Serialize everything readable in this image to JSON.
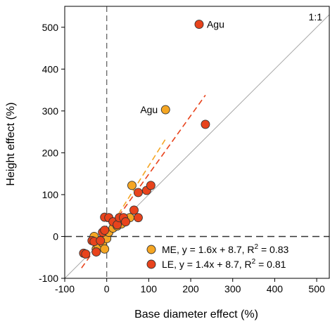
{
  "chart_data": {
    "type": "scatter",
    "title": "",
    "xlabel": "Base diameter effect (%)",
    "ylabel": "Height effect (%)",
    "xlim": [
      -100,
      530
    ],
    "ylim": [
      -100,
      550
    ],
    "xticks": [
      -100,
      0,
      100,
      200,
      300,
      400,
      500
    ],
    "yticks": [
      -100,
      0,
      100,
      200,
      300,
      400,
      500
    ],
    "grid": false,
    "legend_position": "bottom-right",
    "one_to_one_label": "1:1",
    "reference_lines": {
      "x": 0,
      "y": 0
    },
    "series": [
      {
        "name": "ME",
        "legend_label": "ME, y = 1.6x + 8.7, R",
        "legend_sup": "2",
        "legend_suffix": " = 0.83",
        "color": "#f5a623",
        "fit_color": "#f5a623",
        "fit": {
          "slope": 1.6,
          "intercept": 8.7,
          "x_range": [
            -30,
            140
          ]
        },
        "points": [
          [
            -30,
            0
          ],
          [
            -25,
            -30
          ],
          [
            -20,
            -25
          ],
          [
            -10,
            -15
          ],
          [
            -5,
            -30
          ],
          [
            0,
            -5
          ],
          [
            5,
            10
          ],
          [
            15,
            20
          ],
          [
            25,
            25
          ],
          [
            35,
            30
          ],
          [
            55,
            45
          ],
          [
            60,
            122
          ],
          [
            140,
            303
          ]
        ],
        "annotations": [
          {
            "x": 140,
            "y": 303,
            "text": "Agu",
            "side": "left"
          }
        ]
      },
      {
        "name": "LE",
        "legend_label": "LE, y = 1.4x + 8.7, R",
        "legend_sup": "2",
        "legend_suffix": " = 0.81",
        "color": "#e8431c",
        "fit_color": "#e8431c",
        "fit": {
          "slope": 1.4,
          "intercept": 8.7,
          "x_range": [
            -60,
            235
          ]
        },
        "points": [
          [
            -55,
            -40
          ],
          [
            -50,
            -42
          ],
          [
            -35,
            -10
          ],
          [
            -30,
            -12
          ],
          [
            -25,
            -37
          ],
          [
            -15,
            -10
          ],
          [
            -10,
            10
          ],
          [
            -5,
            15
          ],
          [
            -5,
            46
          ],
          [
            5,
            45
          ],
          [
            15,
            35
          ],
          [
            25,
            28
          ],
          [
            30,
            45
          ],
          [
            40,
            45
          ],
          [
            45,
            35
          ],
          [
            65,
            63
          ],
          [
            75,
            45
          ],
          [
            75,
            105
          ],
          [
            95,
            110
          ],
          [
            105,
            122
          ],
          [
            220,
            507
          ],
          [
            235,
            268
          ]
        ],
        "annotations": [
          {
            "x": 220,
            "y": 507,
            "text": "Agu",
            "side": "right"
          }
        ]
      }
    ]
  }
}
